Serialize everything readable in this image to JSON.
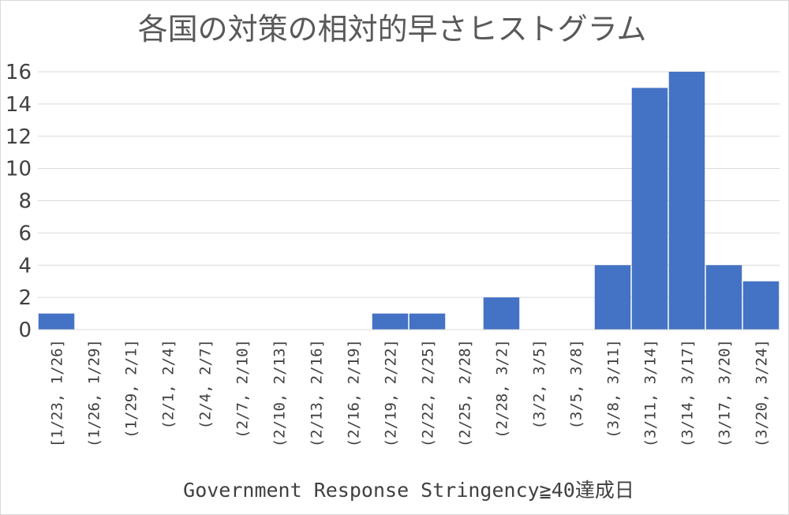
{
  "chart_data": {
    "type": "bar",
    "title": "各国の対策の相対的早さヒストグラム",
    "xlabel": "Government Response Stringency≧40達成日",
    "ylabel": "",
    "ylim": [
      0,
      16
    ],
    "yticks": [
      0,
      2,
      4,
      6,
      8,
      10,
      12,
      14,
      16
    ],
    "grid": true,
    "legend": "none",
    "bar_color": "#4472C4",
    "categories": [
      "[1/23, 1/26]",
      "(1/26, 1/29]",
      "(1/29, 2/1]",
      "(2/1, 2/4]",
      "(2/4, 2/7]",
      "(2/7, 2/10]",
      "(2/10, 2/13]",
      "(2/13, 2/16]",
      "(2/16, 2/19]",
      "(2/19, 2/22]",
      "(2/22, 2/25]",
      "(2/25, 2/28]",
      "(2/28, 3/2]",
      "(3/2, 3/5]",
      "(3/5, 3/8]",
      "(3/8, 3/11]",
      "(3/11, 3/14]",
      "(3/14, 3/17]",
      "(3/17, 3/20]",
      "(3/20, 3/24]"
    ],
    "values": [
      1,
      0,
      0,
      0,
      0,
      0,
      0,
      0,
      0,
      1,
      1,
      0,
      2,
      0,
      0,
      4,
      15,
      16,
      4,
      3
    ]
  }
}
